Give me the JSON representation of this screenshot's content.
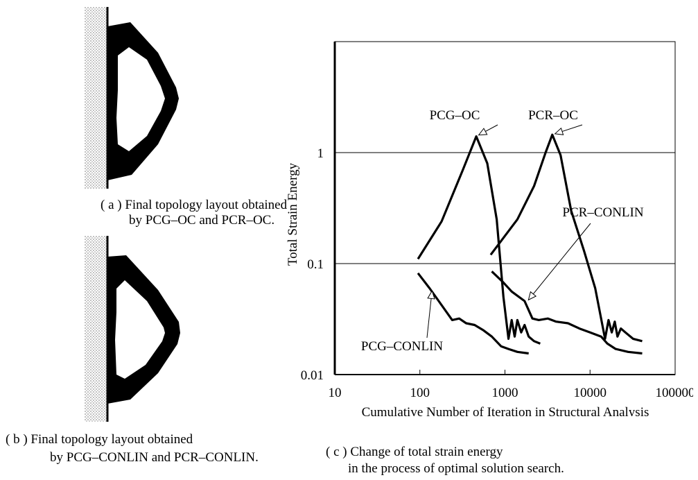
{
  "captions": {
    "a_line1": "( a ) Final topology layout obtained",
    "a_line2": "by PCG–OC and PCR–OC.",
    "b_line1": "( b ) Final topology layout obtained",
    "b_line2": "by PCG–CONLIN and PCR–CONLIN.",
    "c_line1": "( c ) Change of total strain energy",
    "c_line2": "in the process of optimal solution search."
  },
  "chart_data": {
    "type": "line",
    "xlabel": "Cumulative Number of Iteration in Structural Analysis",
    "ylabel": "Total Strain Energy",
    "xscale": "log",
    "yscale": "log",
    "xlim": [
      10,
      100000
    ],
    "ylim": [
      0.01,
      10
    ],
    "xticks": [
      "10",
      "100",
      "1000",
      "10000",
      "100000"
    ],
    "yticks": [
      "0.01",
      "0.1",
      "1"
    ],
    "grid": "horizontal at 0.1 and 1",
    "series": [
      {
        "name": "PCG–OC",
        "x": [
          95,
          180,
          320,
          460,
          620,
          800,
          960,
          1100,
          1200,
          1300,
          1400,
          1550,
          1700,
          1900,
          2200,
          2600
        ],
        "y": [
          0.11,
          0.24,
          0.7,
          1.4,
          0.8,
          0.25,
          0.05,
          0.021,
          0.031,
          0.022,
          0.031,
          0.024,
          0.028,
          0.022,
          0.02,
          0.019
        ]
      },
      {
        "name": "PCR–OC",
        "x": [
          680,
          1400,
          2200,
          3000,
          3600,
          4500,
          6000,
          8500,
          11500,
          15000,
          16500,
          18000,
          19500,
          21000,
          23000,
          26000,
          32000,
          41000
        ],
        "y": [
          0.12,
          0.25,
          0.5,
          1.0,
          1.45,
          0.95,
          0.3,
          0.13,
          0.06,
          0.021,
          0.031,
          0.024,
          0.03,
          0.022,
          0.026,
          0.024,
          0.021,
          0.02
        ]
      },
      {
        "name": "PCG–CONLIN",
        "x": [
          95,
          130,
          170,
          240,
          290,
          350,
          440,
          560,
          700,
          900,
          1100,
          1400,
          1900
        ],
        "y": [
          0.082,
          0.06,
          0.045,
          0.031,
          0.032,
          0.029,
          0.028,
          0.025,
          0.022,
          0.018,
          0.017,
          0.016,
          0.0155
        ]
      },
      {
        "name": "PCR–CONLIN",
        "x": [
          700,
          950,
          1200,
          1700,
          2100,
          2500,
          3200,
          4000,
          5500,
          7500,
          10000,
          13500,
          16000,
          20000,
          28000,
          41000
        ],
        "y": [
          0.085,
          0.068,
          0.056,
          0.046,
          0.032,
          0.031,
          0.032,
          0.03,
          0.029,
          0.026,
          0.024,
          0.022,
          0.019,
          0.017,
          0.016,
          0.0155
        ]
      }
    ],
    "annotations": [
      {
        "label": "PCG–OC",
        "at_x": 460,
        "at_y": 1.4
      },
      {
        "label": "PCR–OC",
        "at_x": 3600,
        "at_y": 1.45
      },
      {
        "label": "PCR–CONLIN",
        "at_x": 1800,
        "at_y": 0.045
      },
      {
        "label": "PCG–CONLIN",
        "at_x": 140,
        "at_y": 0.06
      }
    ]
  }
}
